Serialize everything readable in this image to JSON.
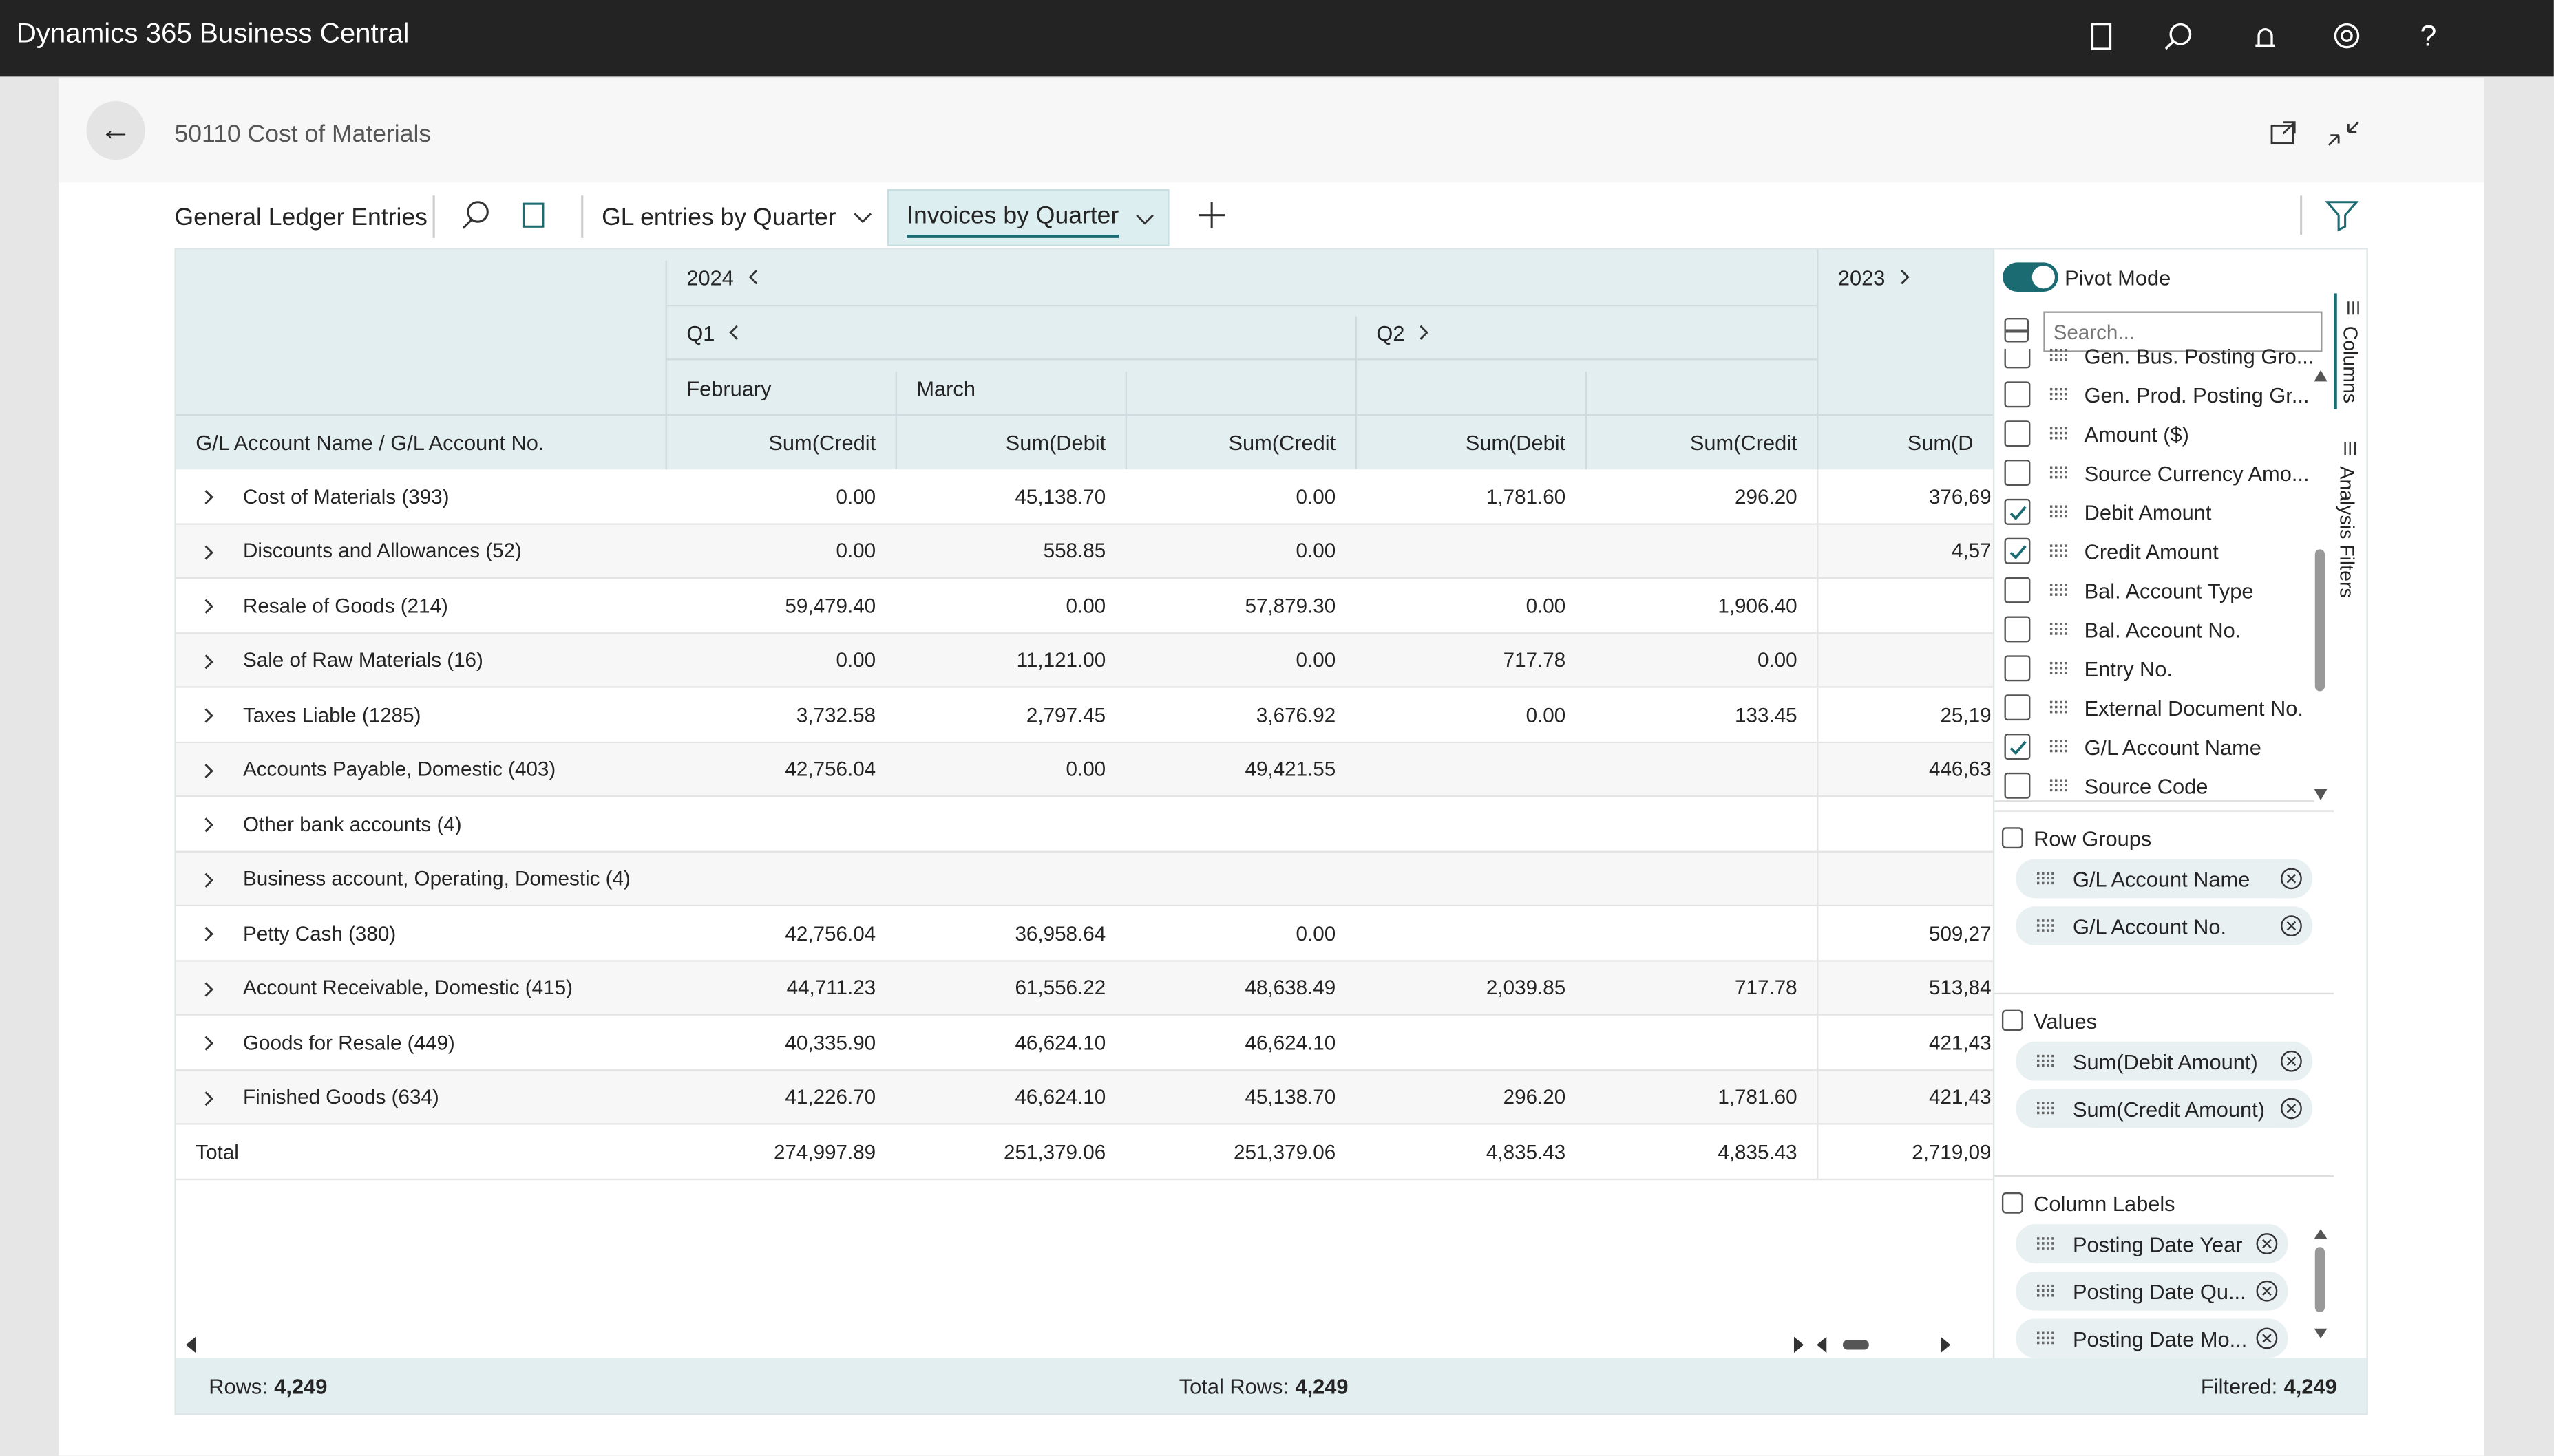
{
  "app": {
    "title": "Dynamics 365 Business Central"
  },
  "page": {
    "title": "50110 Cost of Materials"
  },
  "toolbar": {
    "title": "General Ledger Entries",
    "views": [
      {
        "label": "GL entries by Quarter",
        "selected": false
      },
      {
        "label": "Invoices by Quarter",
        "selected": true
      }
    ]
  },
  "grid": {
    "years": [
      "2024",
      "2023"
    ],
    "quarters": [
      "Q1",
      "Q2"
    ],
    "months": [
      "February",
      "March"
    ],
    "row_header": "G/L Account Name / G/L Account No.",
    "columns": [
      "Sum(Credit",
      "Sum(Debit",
      "Sum(Credit",
      "Sum(Debit",
      "Sum(Credit",
      "Sum(D"
    ],
    "rows": [
      {
        "name": "Cost of Materials (393)",
        "cells": [
          "0.00",
          "45,138.70",
          "0.00",
          "1,781.60",
          "296.20",
          "376,69"
        ]
      },
      {
        "name": "Discounts and Allowances (52)",
        "cells": [
          "0.00",
          "558.85",
          "0.00",
          null,
          null,
          "4,57"
        ]
      },
      {
        "name": "Resale of Goods (214)",
        "cells": [
          "59,479.40",
          "0.00",
          "57,879.30",
          "0.00",
          "1,906.40",
          null
        ]
      },
      {
        "name": "Sale of Raw Materials (16)",
        "cells": [
          "0.00",
          "11,121.00",
          "0.00",
          "717.78",
          "0.00",
          null
        ]
      },
      {
        "name": "Taxes Liable (1285)",
        "cells": [
          "3,732.58",
          "2,797.45",
          "3,676.92",
          "0.00",
          "133.45",
          "25,19"
        ]
      },
      {
        "name": "Accounts Payable, Domestic (403)",
        "cells": [
          "42,756.04",
          "0.00",
          "49,421.55",
          null,
          null,
          "446,63"
        ]
      },
      {
        "name": "Other bank accounts (4)",
        "cells": [
          null,
          null,
          null,
          null,
          null,
          null
        ]
      },
      {
        "name": "Business account, Operating, Domestic (4)",
        "cells": [
          null,
          null,
          null,
          null,
          null,
          null
        ]
      },
      {
        "name": "Petty Cash (380)",
        "cells": [
          "42,756.04",
          "36,958.64",
          "0.00",
          null,
          null,
          "509,27"
        ]
      },
      {
        "name": "Account Receivable, Domestic (415)",
        "cells": [
          "44,711.23",
          "61,556.22",
          "48,638.49",
          "2,039.85",
          "717.78",
          "513,84"
        ]
      },
      {
        "name": "Goods for Resale (449)",
        "cells": [
          "40,335.90",
          "46,624.10",
          "46,624.10",
          null,
          null,
          "421,43"
        ]
      },
      {
        "name": "Finished Goods (634)",
        "cells": [
          "41,226.70",
          "46,624.10",
          "45,138.70",
          "296.20",
          "1,781.60",
          "421,43"
        ]
      }
    ],
    "total": {
      "label": "Total",
      "cells": [
        "274,997.89",
        "251,379.06",
        "251,379.06",
        "4,835.43",
        "4,835.43",
        "2,719,09"
      ]
    }
  },
  "status": {
    "rows_label": "Rows:",
    "rows": "4,249",
    "total_label": "Total Rows:",
    "total": "4,249",
    "filtered_label": "Filtered:",
    "filtered": "4,249"
  },
  "panel": {
    "pivot_mode": "Pivot Mode",
    "pivot_on": true,
    "search_placeholder": "Search...",
    "columns": [
      {
        "label": "Gen. Bus. Posting Gro...",
        "checked": false
      },
      {
        "label": "Gen. Prod. Posting Gr...",
        "checked": false
      },
      {
        "label": "Amount ($)",
        "checked": false
      },
      {
        "label": "Source Currency Amo...",
        "checked": false
      },
      {
        "label": "Debit Amount",
        "checked": true
      },
      {
        "label": "Credit Amount",
        "checked": true
      },
      {
        "label": "Bal. Account Type",
        "checked": false
      },
      {
        "label": "Bal. Account No.",
        "checked": false
      },
      {
        "label": "Entry No.",
        "checked": false
      },
      {
        "label": "External Document No.",
        "checked": false
      },
      {
        "label": "G/L Account Name",
        "checked": true
      },
      {
        "label": "Source Code",
        "checked": false
      }
    ],
    "row_groups": {
      "title": "Row Groups",
      "items": [
        "G/L Account Name",
        "G/L Account No."
      ]
    },
    "values": {
      "title": "Values",
      "items": [
        "Sum(Debit Amount)",
        "Sum(Credit Amount)"
      ]
    },
    "column_labels": {
      "title": "Column Labels",
      "items": [
        "Posting Date Year",
        "Posting Date Qu...",
        "Posting Date Mo..."
      ]
    },
    "tabs": [
      "Columns",
      "Analysis Filters"
    ]
  }
}
